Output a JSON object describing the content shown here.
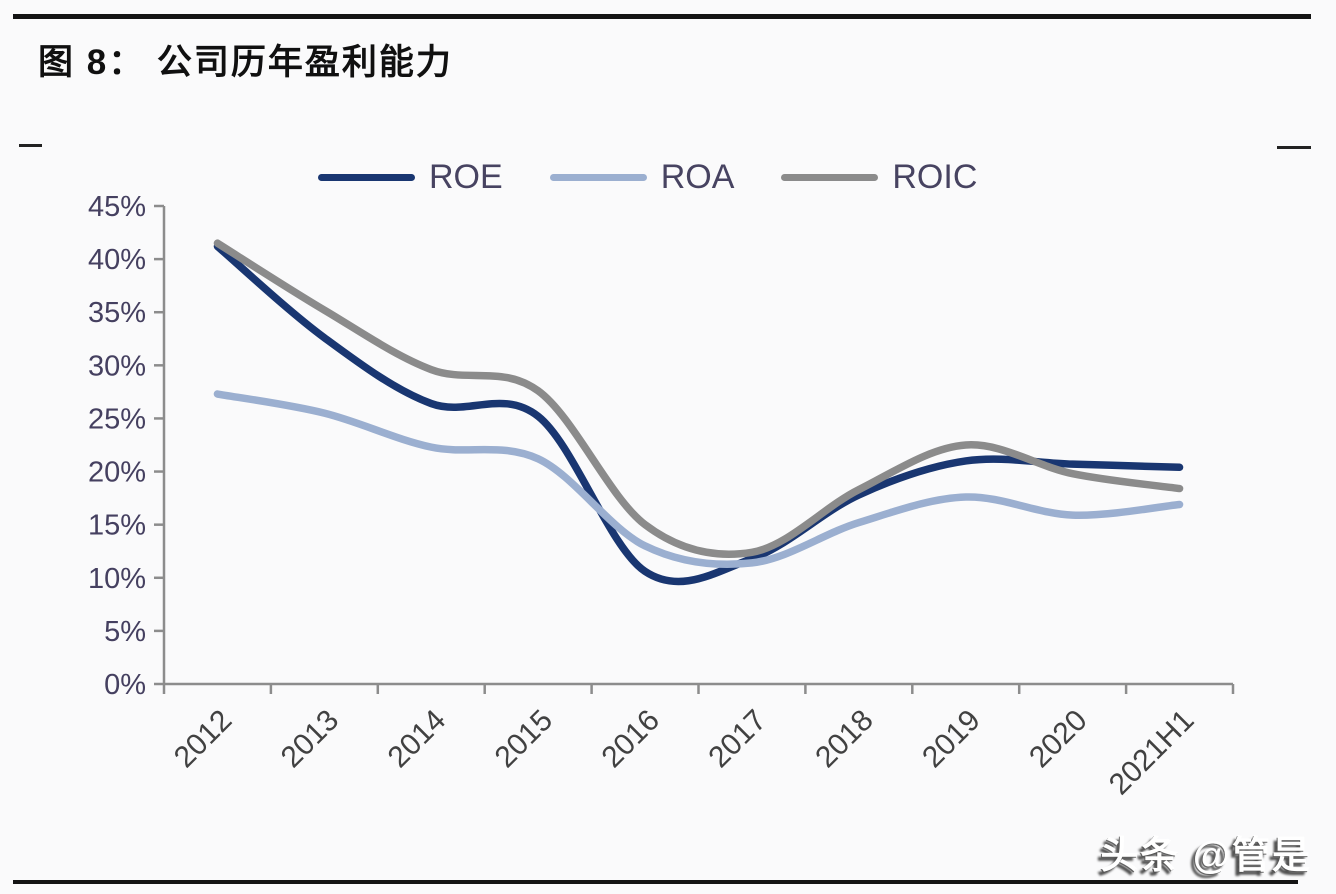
{
  "figure": {
    "title": "图 8：  公司历年盈利能力",
    "watermark": "头条 @管是"
  },
  "colors": {
    "roe": "#193671",
    "roa": "#9bafd0",
    "roic": "#8b8b8b",
    "axis": "#8c8c8c",
    "y_label": "#454060",
    "x_label": "#414141",
    "legend_text": "#474361"
  },
  "chart_data": {
    "type": "line",
    "smooth": true,
    "grid": false,
    "legend_position": "top",
    "unit": "%",
    "categories": [
      "2012",
      "2013",
      "2014",
      "2015",
      "2016",
      "2017",
      "2018",
      "2019",
      "2020",
      "2021H1"
    ],
    "series": [
      {
        "name": "ROE",
        "color": "#193671",
        "values": [
          41.2,
          32.6,
          26.4,
          25.2,
          10.6,
          11.8,
          17.8,
          21.0,
          20.7,
          20.4
        ]
      },
      {
        "name": "ROA",
        "color": "#9bafd0",
        "values": [
          27.3,
          25.5,
          22.3,
          21.2,
          13.0,
          11.4,
          15.2,
          17.6,
          15.9,
          16.9
        ]
      },
      {
        "name": "ROIC",
        "color": "#8b8b8b",
        "values": [
          41.5,
          35.2,
          29.6,
          27.6,
          15.0,
          12.4,
          18.3,
          22.5,
          19.8,
          18.4
        ]
      }
    ],
    "ylim": [
      0,
      45
    ],
    "ytick_step": 5,
    "ytick_labels": [
      "0%",
      "5%",
      "10%",
      "15%",
      "20%",
      "25%",
      "30%",
      "35%",
      "40%",
      "45%"
    ],
    "xlabel": "",
    "ylabel": ""
  }
}
